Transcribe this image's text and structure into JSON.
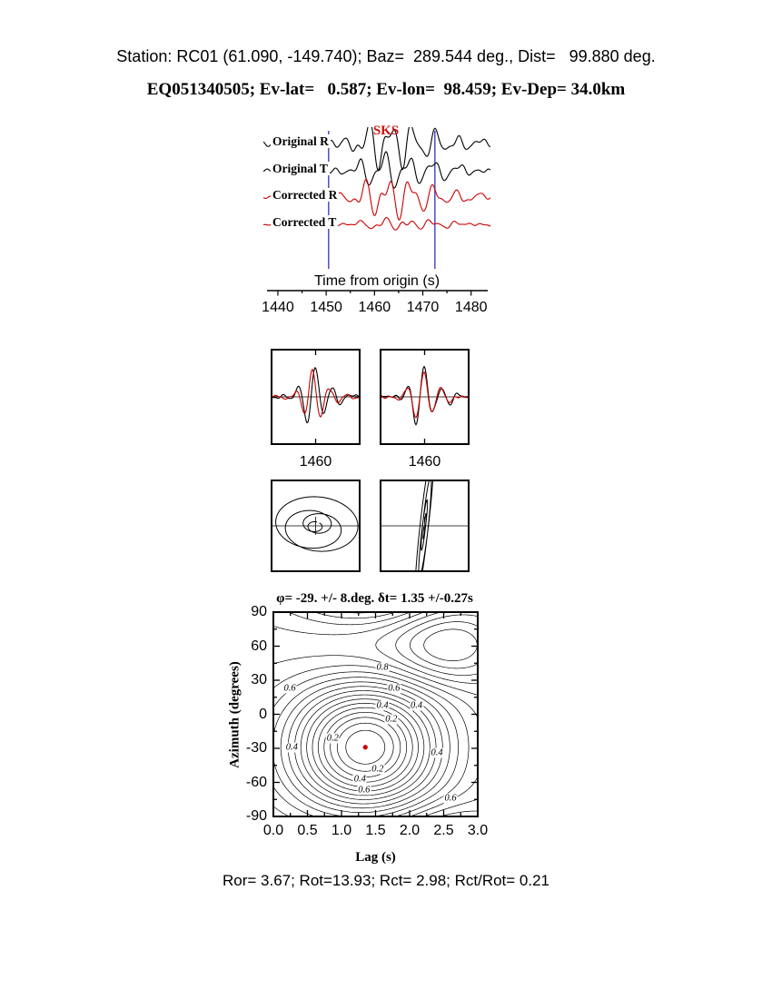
{
  "header": {
    "station_line": "Station: RC01 (61.090, -149.740); Baz=  289.544 deg., Dist=   99.880 deg.",
    "event_line": "EQ051340505; Ev-lat=   0.587; Ev-lon=  98.459; Ev-Dep= 34.0km"
  },
  "footer": {
    "stats": "Ror= 3.67; Rot=13.93; Rct= 2.98; Rct/Rot= 0.21"
  },
  "chart_data": [
    {
      "id": "waveforms",
      "type": "line",
      "phase": "SKS",
      "phase_color": "#cc1111",
      "xlabel": "Time from origin (s)",
      "x_range": [
        1437,
        1484
      ],
      "x_tick_values": [
        1440,
        1450,
        1460,
        1470,
        1480
      ],
      "x_tick_labels": [
        "1440",
        "1450",
        "1460",
        "1470",
        "1480"
      ],
      "window": [
        1450.5,
        1472.5
      ],
      "window_color": "#4040c0",
      "traces": [
        {
          "label": "Original R",
          "color": "#000000"
        },
        {
          "label": "Original T",
          "color": "#000000"
        },
        {
          "label": "Corrected R",
          "color": "#cc0000"
        },
        {
          "label": "Corrected T",
          "color": "#cc0000"
        }
      ]
    },
    {
      "id": "waveform-window-left",
      "type": "line",
      "x_tick_label": "1460",
      "series": [
        {
          "name": "component-1",
          "color": "#000000"
        },
        {
          "name": "component-2",
          "color": "#cc0000"
        }
      ]
    },
    {
      "id": "waveform-window-right",
      "type": "line",
      "x_tick_label": "1460",
      "series": [
        {
          "name": "component-1",
          "color": "#000000"
        },
        {
          "name": "component-2",
          "color": "#cc0000"
        }
      ]
    },
    {
      "id": "particle-motion-original",
      "type": "scatter",
      "style": "elliptical-loops",
      "color": "#000000"
    },
    {
      "id": "particle-motion-corrected",
      "type": "scatter",
      "style": "linear-diagonal",
      "color": "#000000"
    },
    {
      "id": "misfit-surface",
      "type": "heatmap",
      "title": "φ= -29. +/- 8.deg. δt= 1.35 +/-0.27s",
      "xlabel": "Lag (s)",
      "ylabel": "Azimuth (degrees)",
      "x_range": [
        0.0,
        3.0
      ],
      "y_range": [
        -90,
        90
      ],
      "x_tick_labels": [
        "0.0",
        "0.5",
        "1.0",
        "1.5",
        "2.0",
        "2.5",
        "3.0"
      ],
      "y_tick_labels": [
        "90",
        "60",
        "30",
        "0",
        "-30",
        "-60",
        "-90"
      ],
      "best_fit": {
        "phi_deg": -29,
        "phi_err_deg": 8,
        "dt_s": 1.35,
        "dt_err_s": 0.27
      },
      "marker_color": "#cc0000",
      "contour_levels_step": 0.05,
      "contour_labels": [
        {
          "text": "0.6",
          "lag": 0.24,
          "az": 23
        },
        {
          "text": "0.8",
          "lag": 1.6,
          "az": 41
        },
        {
          "text": "0.6",
          "lag": 1.77,
          "az": 23
        },
        {
          "text": "0.4",
          "lag": 1.6,
          "az": 8
        },
        {
          "text": "0.4",
          "lag": 2.1,
          "az": 8
        },
        {
          "text": "0.2",
          "lag": 1.73,
          "az": -4
        },
        {
          "text": "0.2",
          "lag": 0.87,
          "az": -21
        },
        {
          "text": "0.4",
          "lag": 0.27,
          "az": -29
        },
        {
          "text": "0.4",
          "lag": 2.4,
          "az": -34
        },
        {
          "text": "0.2",
          "lag": 1.53,
          "az": -48
        },
        {
          "text": "0.4",
          "lag": 1.27,
          "az": -57
        },
        {
          "text": "0.6",
          "lag": 1.33,
          "az": -67
        },
        {
          "text": "0.6",
          "lag": 2.6,
          "az": -74
        }
      ]
    }
  ]
}
